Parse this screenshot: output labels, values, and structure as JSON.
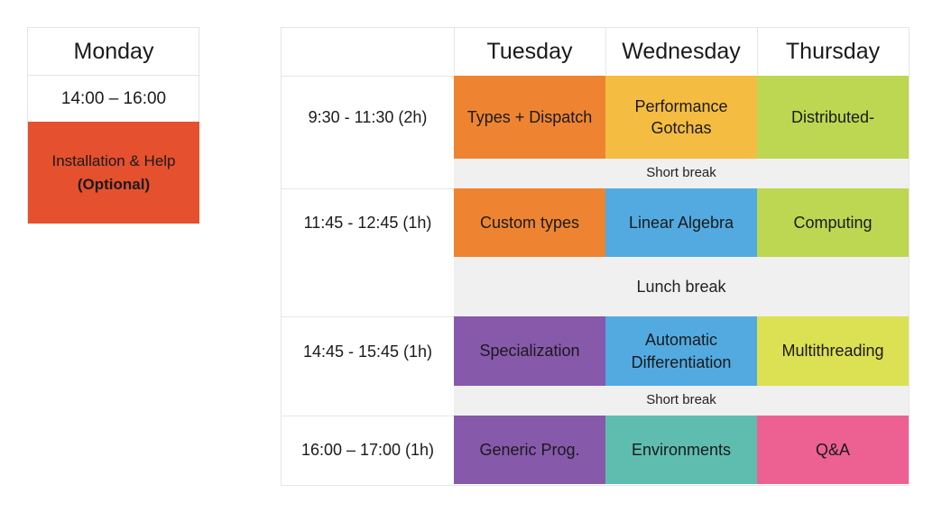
{
  "monday": {
    "day": "Monday",
    "time": "14:00 – 16:00",
    "session_line1": "Installation & Help",
    "session_line2": "(Optional)",
    "session_color": "#E5502E"
  },
  "grid": {
    "days": [
      "Tuesday",
      "Wednesday",
      "Thursday"
    ],
    "slots": [
      {
        "time": "9:30 - 11:30 (2h)",
        "sessions": [
          {
            "label": "Types + Dispatch",
            "color": "#EE8432"
          },
          {
            "label": "Performance Gotchas",
            "color": "#F4BC41"
          },
          {
            "label": "Distributed-",
            "color": "#BDD752"
          }
        ]
      },
      {
        "break": "Short break"
      },
      {
        "time": "11:45 - 12:45 (1h)",
        "sessions": [
          {
            "label": "Custom types",
            "color": "#EE8432"
          },
          {
            "label": "Linear Algebra",
            "color": "#52AAE0"
          },
          {
            "label": "Computing",
            "color": "#BDD752"
          }
        ]
      },
      {
        "break": "Lunch break"
      },
      {
        "time": "14:45 - 15:45 (1h)",
        "sessions": [
          {
            "label": "Specialization",
            "color": "#8659AB"
          },
          {
            "label": "Automatic Differentiation",
            "color": "#52AAE0"
          },
          {
            "label": "Multithreading",
            "color": "#DCE053"
          }
        ]
      },
      {
        "break": "Short break"
      },
      {
        "time": "16:00 – 17:00 (1h)",
        "sessions": [
          {
            "label": "Generic Prog.",
            "color": "#8659AB"
          },
          {
            "label": "Environments",
            "color": "#5FBDAF"
          },
          {
            "label": "Q&A",
            "color": "#EC6191"
          }
        ]
      }
    ]
  }
}
